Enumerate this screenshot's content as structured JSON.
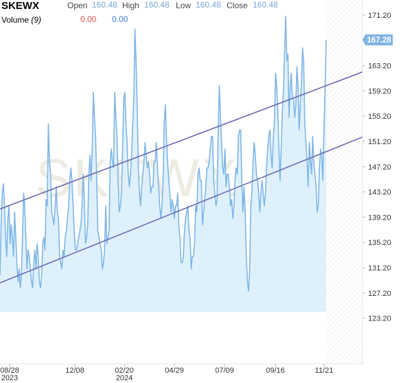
{
  "header": {
    "symbol": "SKEWX",
    "open_label": "Open",
    "open_value": "160.48",
    "high_label": "High",
    "high_value": "160.48",
    "low_label": "Low",
    "low_value": "160.48",
    "close_label": "Close",
    "close_value": "160.48",
    "volume_label": "Volume",
    "volume_period": "(9)",
    "volume_value_a": "0.00",
    "volume_value_b": "0.00"
  },
  "watermark": "SKEWX",
  "colors": {
    "line": "#7eb6e6",
    "area": "#dff0fd",
    "channel": "#6a6ab0",
    "price_badge": "#7fb4e3"
  },
  "chart_data": {
    "type": "area",
    "ylim": [
      121,
      173
    ],
    "y_ticks": [
      "171.20",
      "163.20",
      "159.20",
      "155.20",
      "151.20",
      "147.20",
      "143.20",
      "139.20",
      "135.20",
      "131.20",
      "127.20",
      "123.20"
    ],
    "x_ticks": [
      {
        "label": "08/28",
        "sub": "2023"
      },
      {
        "label": "12/08",
        "sub": ""
      },
      {
        "label": "02/20",
        "sub": "2024"
      },
      {
        "label": "04/29",
        "sub": ""
      },
      {
        "label": "07/09",
        "sub": ""
      },
      {
        "label": "09/16",
        "sub": ""
      },
      {
        "label": "11/21",
        "sub": ""
      }
    ],
    "last_price": "167.28",
    "series": [
      {
        "values": [
          130,
          138,
          143,
          144.5,
          141,
          136,
          133,
          139,
          141,
          135,
          138,
          136,
          133,
          140,
          136,
          132,
          129,
          131,
          128,
          130,
          136,
          143,
          141,
          136,
          131,
          134,
          133,
          131,
          129,
          128,
          132,
          134,
          131,
          135,
          133,
          129,
          128,
          130,
          135,
          136,
          134,
          142,
          141,
          154,
          148,
          146,
          140,
          139,
          138,
          141,
          144,
          140,
          139,
          133,
          132,
          131,
          134,
          133,
          136,
          137,
          139,
          141,
          145,
          147,
          145,
          141,
          137,
          134,
          134,
          135,
          136,
          137,
          138,
          141,
          146,
          142,
          135,
          136,
          138,
          146,
          149,
          145,
          150,
          159,
          155,
          152,
          145,
          137,
          136,
          135,
          134,
          131,
          132,
          134,
          141,
          135,
          136,
          137,
          148,
          150,
          148,
          147,
          159,
          155,
          152,
          145,
          140,
          141,
          143,
          150,
          158,
          159,
          154,
          151,
          146,
          144,
          146,
          149,
          154,
          158,
          169,
          164,
          157,
          147,
          143,
          141,
          144,
          146,
          148,
          151,
          149,
          147,
          148,
          146,
          143,
          144,
          144,
          148,
          148,
          151,
          147,
          144,
          141,
          139,
          141,
          145,
          154,
          157,
          152,
          148,
          145,
          143,
          140,
          142,
          141,
          139,
          141,
          141,
          143,
          138,
          136,
          132,
          132,
          133,
          137,
          139,
          140,
          141,
          137,
          136,
          131,
          133,
          133,
          135,
          141,
          140,
          146,
          147,
          145,
          145,
          138,
          140,
          142,
          144,
          147,
          147,
          148,
          150,
          152,
          152,
          145,
          143,
          141,
          142,
          153,
          160,
          155,
          151,
          147,
          146,
          150,
          144,
          146,
          146,
          144,
          141,
          142,
          139,
          141,
          145,
          147,
          146,
          152,
          153,
          153,
          145,
          140,
          144,
          140,
          133,
          129,
          127.5,
          131,
          141,
          143,
          148,
          151,
          149,
          146,
          145,
          143,
          140,
          143,
          145,
          143,
          141,
          143,
          147,
          150,
          152,
          153,
          149,
          147,
          152,
          154,
          162,
          160,
          156,
          150,
          145,
          150,
          156,
          159,
          165,
          171,
          164,
          165,
          155,
          160,
          162,
          158,
          158,
          155,
          157,
          163,
          160,
          153,
          157,
          160,
          166,
          164,
          154,
          151,
          148,
          144,
          151,
          148,
          146,
          152,
          148,
          146,
          144,
          140,
          141,
          147,
          150,
          149,
          145,
          153,
          159,
          167.28
        ]
      }
    ],
    "channel_lines": [
      {
        "x0_frac": 0.0,
        "y0": 140.5,
        "x1_frac": 1.0,
        "y1": 162.2
      },
      {
        "x0_frac": 0.0,
        "y0": 128.8,
        "x1_frac": 1.0,
        "y1": 151.9
      }
    ],
    "grid": false,
    "legend": "none"
  }
}
